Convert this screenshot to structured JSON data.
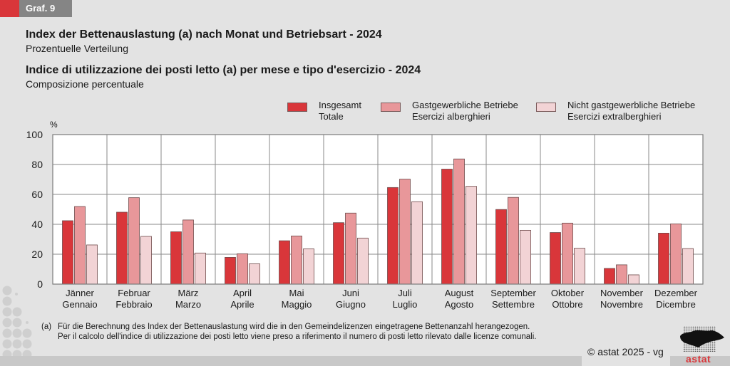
{
  "header": {
    "tag": "Graf. 9",
    "title_de": "Index der Bettenauslastung (a) nach Monat und Betriebsart - 2024",
    "subtitle_de": "Prozentuelle Verteilung",
    "title_it": "Indice di utilizzazione dei posti letto (a) per mese e tipo d'esercizio - 2024",
    "subtitle_it": "Composizione percentuale"
  },
  "legend": [
    {
      "line1": "Insgesamt",
      "line2": "Totale",
      "color": "#d9363a"
    },
    {
      "line1": "Gastgewerbliche Betriebe",
      "line2": "Esercizi alberghieri",
      "color": "#e8979a"
    },
    {
      "line1": "Nicht gastgewerbliche Betriebe",
      "line2": "Esercizi extralberghieri",
      "color": "#f2d3d5"
    }
  ],
  "chart_data": {
    "type": "bar",
    "title": "Index der Bettenauslastung (a) nach Monat und Betriebsart - 2024",
    "ylabel": "%",
    "xlabel": "",
    "ylim": [
      0,
      100
    ],
    "yticks": [
      0,
      20,
      40,
      60,
      80,
      100
    ],
    "grid": true,
    "legend_position": "top-right",
    "categories": [
      [
        "Jänner",
        "Gennaio"
      ],
      [
        "Februar",
        "Febbraio"
      ],
      [
        "März",
        "Marzo"
      ],
      [
        "April",
        "Aprile"
      ],
      [
        "Mai",
        "Maggio"
      ],
      [
        "Juni",
        "Giugno"
      ],
      [
        "Juli",
        "Luglio"
      ],
      [
        "August",
        "Agosto"
      ],
      [
        "September",
        "Settembre"
      ],
      [
        "Oktober",
        "Ottobre"
      ],
      [
        "November",
        "Novembre"
      ],
      [
        "Dezember",
        "Dicembre"
      ]
    ],
    "series": [
      {
        "name": "Insgesamt / Totale",
        "color": "#d9363a",
        "values": [
          42.4,
          48.1,
          35.0,
          17.9,
          29.0,
          41.1,
          64.6,
          76.9,
          49.9,
          34.5,
          10.5,
          34.1
        ]
      },
      {
        "name": "Gastgewerbliche Betriebe / Esercizi alberghieri",
        "color": "#e8979a",
        "values": [
          51.9,
          57.8,
          42.9,
          20.3,
          32.2,
          47.5,
          70.2,
          83.7,
          58.0,
          40.8,
          12.9,
          40.3
        ]
      },
      {
        "name": "Nicht gastgewerbliche Betriebe / Esercizi extralberghieri",
        "color": "#f2d3d5",
        "values": [
          26.2,
          31.9,
          20.8,
          13.6,
          23.6,
          30.8,
          55.1,
          65.4,
          36.0,
          24.0,
          6.2,
          23.8
        ]
      }
    ]
  },
  "footnote": {
    "marker": "(a)",
    "line_de": "Für die Berechnung des Index der Bettenauslastung wird die in den Gemeindelizenzen eingetragene Bettenanzahl herangezogen.",
    "line_it": "Per il calcolo dell'indice di utilizzazione dei posti letto viene preso a riferimento il numero di posti letto rilevato dalle licenze comunali."
  },
  "copyright": "© astat 2025 - vg",
  "logo_text": "astat"
}
